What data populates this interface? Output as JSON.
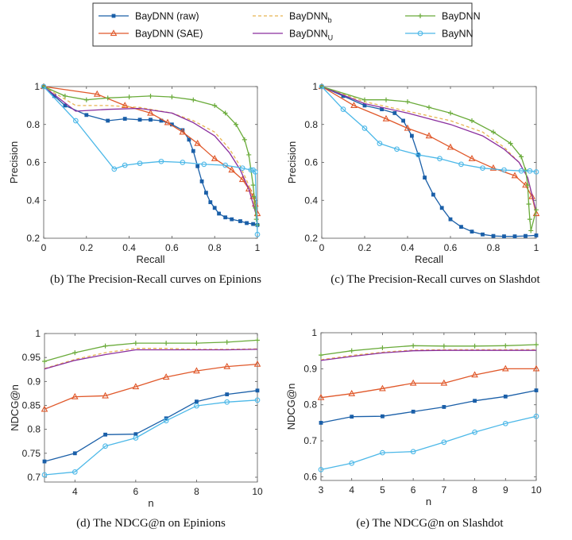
{
  "colors": {
    "raw": "#1a5fa8",
    "sae": "#e0582a",
    "b": "#e8b552",
    "u": "#8a2e9e",
    "baydnn": "#6aab3a",
    "baynn": "#4cb8e8"
  },
  "legend": {
    "items": [
      {
        "key": "raw",
        "label": "BayDNN (raw)",
        "sub": ""
      },
      {
        "key": "sae",
        "label": "BayDNN (SAE)",
        "sub": ""
      },
      {
        "key": "b",
        "label": "BayDNN",
        "sub": "b"
      },
      {
        "key": "u",
        "label": "BayDNN",
        "sub": "U"
      },
      {
        "key": "baydnn",
        "label": "BayDNN",
        "sub": ""
      },
      {
        "key": "baynn",
        "label": "BayNN",
        "sub": ""
      }
    ]
  },
  "chart_data": [
    {
      "type": "line",
      "caption": "(b) The Precision-Recall curves on Epinions",
      "xlabel": "Recall",
      "ylabel": "Precision",
      "xlim": [
        0,
        1
      ],
      "ylim": [
        0.2,
        1
      ],
      "xticks": [
        "0",
        "0.2",
        "0.4",
        "0.6",
        "0.8",
        "1"
      ],
      "yticks": [
        "0.2",
        "0.4",
        "0.6",
        "0.8",
        "1"
      ],
      "series": [
        {
          "key": "raw",
          "name": "BayDNN (raw)",
          "marker": "square",
          "x": [
            0,
            0.05,
            0.1,
            0.2,
            0.3,
            0.38,
            0.45,
            0.5,
            0.55,
            0.6,
            0.65,
            0.68,
            0.7,
            0.72,
            0.74,
            0.76,
            0.78,
            0.8,
            0.82,
            0.85,
            0.88,
            0.92,
            0.95,
            0.98,
            1
          ],
          "y": [
            1,
            0.95,
            0.9,
            0.85,
            0.82,
            0.83,
            0.825,
            0.825,
            0.82,
            0.8,
            0.77,
            0.72,
            0.66,
            0.58,
            0.5,
            0.44,
            0.39,
            0.36,
            0.33,
            0.31,
            0.3,
            0.29,
            0.28,
            0.275,
            0.27
          ]
        },
        {
          "key": "sae",
          "name": "BayDNN (SAE)",
          "marker": "triangle",
          "x": [
            0,
            0.25,
            0.38,
            0.5,
            0.58,
            0.65,
            0.72,
            0.8,
            0.88,
            0.93,
            0.96,
            0.98,
            0.99,
            1
          ],
          "y": [
            1,
            0.96,
            0.9,
            0.86,
            0.81,
            0.76,
            0.7,
            0.62,
            0.56,
            0.51,
            0.46,
            0.42,
            0.38,
            0.33
          ]
        },
        {
          "key": "b",
          "name": "BayDNN_b",
          "dashed": true,
          "x": [
            0,
            0.15,
            0.3,
            0.45,
            0.6,
            0.7,
            0.8,
            0.87,
            0.92,
            0.96,
            0.98,
            1
          ],
          "y": [
            1,
            0.9,
            0.9,
            0.89,
            0.86,
            0.82,
            0.76,
            0.67,
            0.58,
            0.48,
            0.4,
            0.32
          ]
        },
        {
          "key": "u",
          "name": "BayDNN_U",
          "x": [
            0,
            0.15,
            0.3,
            0.45,
            0.6,
            0.7,
            0.8,
            0.87,
            0.92,
            0.96,
            0.98,
            1
          ],
          "y": [
            1,
            0.87,
            0.88,
            0.885,
            0.86,
            0.81,
            0.74,
            0.65,
            0.56,
            0.46,
            0.38,
            0.3
          ]
        },
        {
          "key": "baydnn",
          "name": "BayDNN",
          "marker": "plus",
          "x": [
            0,
            0.1,
            0.2,
            0.3,
            0.4,
            0.5,
            0.6,
            0.7,
            0.8,
            0.85,
            0.9,
            0.94,
            0.96,
            0.97,
            0.98,
            0.985,
            0.99,
            0.995,
            1
          ],
          "y": [
            1,
            0.95,
            0.93,
            0.94,
            0.945,
            0.95,
            0.945,
            0.93,
            0.9,
            0.86,
            0.8,
            0.72,
            0.64,
            0.56,
            0.48,
            0.42,
            0.36,
            0.3,
            0.27
          ]
        },
        {
          "key": "baynn",
          "name": "BayNN",
          "marker": "circle",
          "x": [
            0,
            0.15,
            0.33,
            0.38,
            0.45,
            0.55,
            0.65,
            0.75,
            0.85,
            0.93,
            0.97,
            0.98,
            0.99,
            1
          ],
          "y": [
            1,
            0.82,
            0.565,
            0.585,
            0.595,
            0.605,
            0.6,
            0.59,
            0.585,
            0.57,
            0.56,
            0.56,
            0.55,
            0.22
          ]
        }
      ]
    },
    {
      "type": "line",
      "caption": "(c) The Precision-Recall curves on Slashdot",
      "xlabel": "Recall",
      "ylabel": "Precision",
      "xlim": [
        0,
        1
      ],
      "ylim": [
        0.2,
        1
      ],
      "xticks": [
        "0",
        "0.2",
        "0.4",
        "0.6",
        "0.8",
        "1"
      ],
      "yticks": [
        "0.2",
        "0.4",
        "0.6",
        "0.8",
        "1"
      ],
      "series": [
        {
          "key": "raw",
          "name": "BayDNN (raw)",
          "marker": "square",
          "x": [
            0,
            0.1,
            0.2,
            0.28,
            0.34,
            0.38,
            0.42,
            0.45,
            0.48,
            0.52,
            0.56,
            0.6,
            0.65,
            0.7,
            0.75,
            0.8,
            0.85,
            0.9,
            0.95,
            1
          ],
          "y": [
            1,
            0.95,
            0.9,
            0.88,
            0.86,
            0.82,
            0.74,
            0.64,
            0.52,
            0.43,
            0.36,
            0.3,
            0.26,
            0.235,
            0.22,
            0.212,
            0.21,
            0.21,
            0.212,
            0.215
          ]
        },
        {
          "key": "sae",
          "name": "BayDNN (SAE)",
          "marker": "triangle",
          "x": [
            0,
            0.15,
            0.3,
            0.4,
            0.5,
            0.6,
            0.7,
            0.8,
            0.9,
            0.95,
            0.98,
            1
          ],
          "y": [
            1,
            0.9,
            0.83,
            0.78,
            0.74,
            0.68,
            0.62,
            0.57,
            0.53,
            0.48,
            0.42,
            0.33
          ]
        },
        {
          "key": "b",
          "name": "BayDNN_b",
          "dashed": true,
          "x": [
            0,
            0.2,
            0.4,
            0.6,
            0.75,
            0.85,
            0.92,
            0.96,
            1
          ],
          "y": [
            1,
            0.92,
            0.87,
            0.82,
            0.76,
            0.68,
            0.6,
            0.52,
            0.32
          ]
        },
        {
          "key": "u",
          "name": "BayDNN_U",
          "x": [
            0,
            0.2,
            0.4,
            0.6,
            0.75,
            0.85,
            0.92,
            0.96,
            1
          ],
          "y": [
            1,
            0.91,
            0.86,
            0.8,
            0.74,
            0.67,
            0.6,
            0.52,
            0.34
          ]
        },
        {
          "key": "baydnn",
          "name": "BayDNN",
          "marker": "plus",
          "x": [
            0,
            0.2,
            0.3,
            0.4,
            0.5,
            0.6,
            0.7,
            0.8,
            0.88,
            0.93,
            0.95,
            0.96,
            0.965,
            0.97,
            0.975,
            1
          ],
          "y": [
            1,
            0.93,
            0.93,
            0.92,
            0.89,
            0.86,
            0.82,
            0.76,
            0.7,
            0.63,
            0.56,
            0.48,
            0.38,
            0.3,
            0.24,
            0.35
          ]
        },
        {
          "key": "baynn",
          "name": "BayNN",
          "marker": "circle",
          "x": [
            0,
            0.1,
            0.2,
            0.27,
            0.35,
            0.45,
            0.55,
            0.65,
            0.75,
            0.85,
            0.93,
            0.97,
            1
          ],
          "y": [
            1,
            0.88,
            0.78,
            0.7,
            0.67,
            0.64,
            0.62,
            0.59,
            0.57,
            0.56,
            0.555,
            0.555,
            0.55
          ]
        }
      ]
    },
    {
      "type": "line",
      "caption": "(d) The NDCG@n on Epinions",
      "xlabel": "n",
      "ylabel": "NDCG@n",
      "xlim": [
        3,
        10
      ],
      "ylim": [
        0.69,
        1
      ],
      "xticks": [
        "4",
        "6",
        "8",
        "10"
      ],
      "yticks": [
        "0.7",
        "0.75",
        "0.8",
        "0.85",
        "0.9",
        "0.95",
        "1"
      ],
      "series": [
        {
          "key": "raw",
          "name": "BayDNN (raw)",
          "marker": "square",
          "x": [
            3,
            4,
            5,
            6,
            7,
            8,
            9,
            10
          ],
          "y": [
            0.733,
            0.75,
            0.789,
            0.79,
            0.823,
            0.858,
            0.873,
            0.881
          ]
        },
        {
          "key": "sae",
          "name": "BayDNN (SAE)",
          "marker": "triangle",
          "x": [
            3,
            4,
            5,
            6,
            7,
            8,
            9,
            10
          ],
          "y": [
            0.842,
            0.868,
            0.87,
            0.889,
            0.909,
            0.922,
            0.931,
            0.936
          ]
        },
        {
          "key": "b",
          "name": "BayDNN_b",
          "dashed": true,
          "x": [
            3,
            4,
            5,
            6,
            7,
            8,
            9,
            10
          ],
          "y": [
            0.927,
            0.946,
            0.96,
            0.969,
            0.969,
            0.967,
            0.967,
            0.968
          ]
        },
        {
          "key": "u",
          "name": "BayDNN_U",
          "x": [
            3,
            4,
            5,
            6,
            7,
            8,
            9,
            10
          ],
          "y": [
            0.926,
            0.944,
            0.956,
            0.966,
            0.966,
            0.966,
            0.966,
            0.967
          ]
        },
        {
          "key": "baydnn",
          "name": "BayDNN",
          "marker": "plus",
          "x": [
            3,
            4,
            5,
            6,
            7,
            8,
            9,
            10
          ],
          "y": [
            0.942,
            0.96,
            0.974,
            0.98,
            0.98,
            0.98,
            0.982,
            0.986
          ]
        },
        {
          "key": "baynn",
          "name": "BayNN",
          "marker": "circle",
          "x": [
            3,
            4,
            5,
            6,
            7,
            8,
            9,
            10
          ],
          "y": [
            0.705,
            0.711,
            0.765,
            0.782,
            0.818,
            0.849,
            0.857,
            0.861
          ]
        }
      ]
    },
    {
      "type": "line",
      "caption": "(e) The NDCG@n on Slashdot",
      "xlabel": "n",
      "ylabel": "NDCG@n",
      "xlim": [
        3,
        10
      ],
      "ylim": [
        0.59,
        1
      ],
      "xticks": [
        "3",
        "4",
        "5",
        "6",
        "7",
        "8",
        "9",
        "10"
      ],
      "yticks": [
        "0.6",
        "0.7",
        "0.8",
        "0.9",
        "1"
      ],
      "series": [
        {
          "key": "raw",
          "name": "BayDNN (raw)",
          "marker": "square",
          "x": [
            3,
            4,
            5,
            6,
            7,
            8,
            9,
            10
          ],
          "y": [
            0.75,
            0.767,
            0.768,
            0.781,
            0.794,
            0.811,
            0.823,
            0.84
          ]
        },
        {
          "key": "sae",
          "name": "BayDNN (SAE)",
          "marker": "triangle",
          "x": [
            3,
            4,
            5,
            6,
            7,
            8,
            9,
            10
          ],
          "y": [
            0.82,
            0.831,
            0.845,
            0.86,
            0.86,
            0.883,
            0.9,
            0.9
          ]
        },
        {
          "key": "b",
          "name": "BayDNN_b",
          "dashed": true,
          "x": [
            3,
            4,
            5,
            6,
            7,
            8,
            9,
            10
          ],
          "y": [
            0.925,
            0.937,
            0.946,
            0.952,
            0.953,
            0.953,
            0.953,
            0.953
          ]
        },
        {
          "key": "u",
          "name": "BayDNN_U",
          "x": [
            3,
            4,
            5,
            6,
            7,
            8,
            9,
            10
          ],
          "y": [
            0.923,
            0.934,
            0.944,
            0.95,
            0.951,
            0.951,
            0.951,
            0.951
          ]
        },
        {
          "key": "baydnn",
          "name": "BayDNN",
          "marker": "plus",
          "x": [
            3,
            4,
            5,
            6,
            7,
            8,
            9,
            10
          ],
          "y": [
            0.938,
            0.95,
            0.958,
            0.964,
            0.963,
            0.963,
            0.964,
            0.967
          ]
        },
        {
          "key": "baynn",
          "name": "BayNN",
          "marker": "circle",
          "x": [
            3,
            4,
            5,
            6,
            7,
            8,
            9,
            10
          ],
          "y": [
            0.62,
            0.638,
            0.667,
            0.67,
            0.696,
            0.724,
            0.748,
            0.768
          ]
        }
      ]
    }
  ]
}
